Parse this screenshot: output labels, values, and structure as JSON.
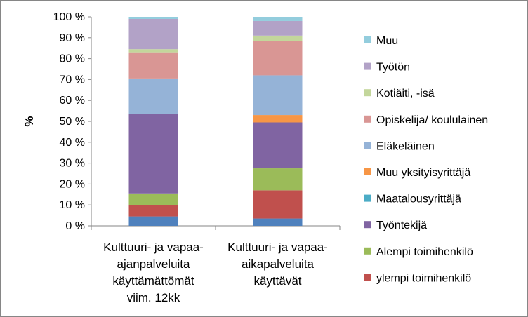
{
  "chart_data": {
    "type": "bar",
    "stacked": true,
    "percent_stacked": true,
    "ylabel": "%",
    "ylim": [
      0,
      100
    ],
    "yticks": [
      0,
      10,
      20,
      30,
      40,
      50,
      60,
      70,
      80,
      90,
      100
    ],
    "ytick_labels": [
      "0 %",
      "10 %",
      "20 %",
      "30 %",
      "40 %",
      "50 %",
      "60 %",
      "70 %",
      "80 %",
      "90 %",
      "100 %"
    ],
    "grid": false,
    "legend_position": "right",
    "categories": [
      [
        "Kulttuuri- ja vapaa-",
        "ajanpalveluita",
        "käyttämättömät",
        "viim. 12kk"
      ],
      [
        "Kulttuuri- ja vapaa-",
        "aikapalveluita",
        "käyttävät"
      ]
    ],
    "series": [
      {
        "name": "",
        "color": "#4f81bd",
        "values": [
          4.5,
          3.5
        ]
      },
      {
        "name": "ylempi toimihenkilö",
        "color": "#c0504d",
        "values": [
          5.5,
          13.5
        ]
      },
      {
        "name": "Alempi toimihenkilö",
        "color": "#9bbb59",
        "values": [
          5.5,
          10.5
        ]
      },
      {
        "name": "Työntekijä",
        "color": "#8064a2",
        "values": [
          38,
          22
        ]
      },
      {
        "name": "Maatalousyrittäjä",
        "color": "#4bacc6",
        "values": [
          0,
          0
        ]
      },
      {
        "name": "Muu yksityisyrittäjä",
        "color": "#f79646",
        "values": [
          0,
          3.5
        ]
      },
      {
        "name": "Eläkeläinen",
        "color": "#95b3d7",
        "values": [
          17,
          19
        ]
      },
      {
        "name": "Opiskelija/ koululainen",
        "color": "#d99694",
        "values": [
          12.5,
          16.5
        ]
      },
      {
        "name": "Kotiäiti, -isä",
        "color": "#c3d69b",
        "values": [
          1.5,
          2.5
        ]
      },
      {
        "name": "Työtön",
        "color": "#b2a2c7",
        "values": [
          14.5,
          7
        ]
      },
      {
        "name": "Muu",
        "color": "#93cddd",
        "values": [
          1,
          2
        ]
      }
    ],
    "legend_order": [
      "Muu",
      "Työtön",
      "Kotiäiti, -isä",
      "Opiskelija/ koululainen",
      "Eläkeläinen",
      "Muu yksityisyrittäjä",
      "Maatalousyrittäjä",
      "Työntekijä",
      "Alempi toimihenkilö",
      "ylempi toimihenkilö"
    ]
  }
}
